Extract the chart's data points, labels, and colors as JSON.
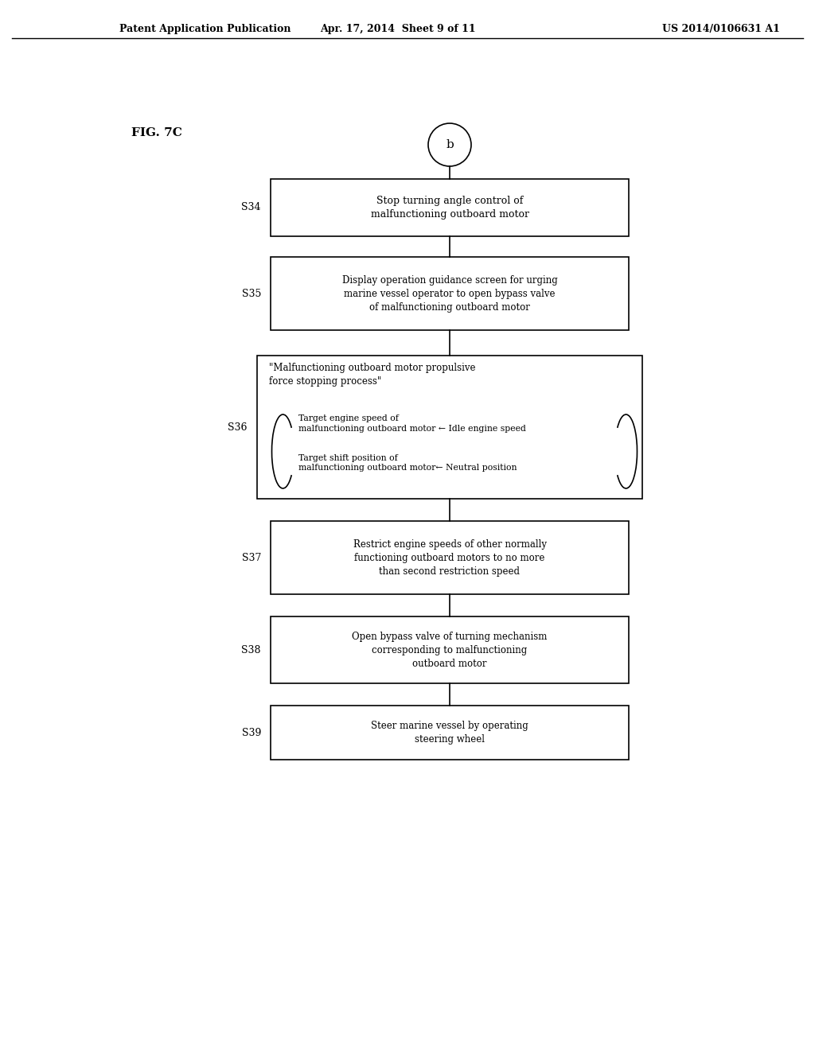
{
  "bg_color": "#ffffff",
  "header_left": "Patent Application Publication",
  "header_mid": "Apr. 17, 2014  Sheet 9 of 11",
  "header_right": "US 2014/0106631 A1",
  "fig_label": "FIG. 7C",
  "connector_label": "b",
  "s34_line1": "Stop turning angle control of",
  "s34_line2": "malfunctioning outboard motor",
  "s35_line1": "Display operation guidance screen for urging",
  "s35_line2": "marine vessel operator to open bypass valve",
  "s35_line3": "of malfunctioning outboard motor",
  "s36_title1": "\"Malfunctioning outboard motor propulsive",
  "s36_title2": "force stopping process\"",
  "s36_sub1a": "Target engine speed of",
  "s36_sub1b": "malfunctioning outboard motor ← Idle engine speed",
  "s36_sub2a": "Target shift position of",
  "s36_sub2b": "malfunctioning outboard motor← Neutral position",
  "s37_line1": "Restrict engine speeds of other normally",
  "s37_line2": "functioning outboard motors to no more",
  "s37_line3": "than second restriction speed",
  "s38_line1": "Open bypass valve of turning mechanism",
  "s38_line2": "corresponding to malfunctioning",
  "s38_line3": "outboard motor",
  "s39_line1": "Steer marine vessel by operating",
  "s39_line2": "steering wheel"
}
